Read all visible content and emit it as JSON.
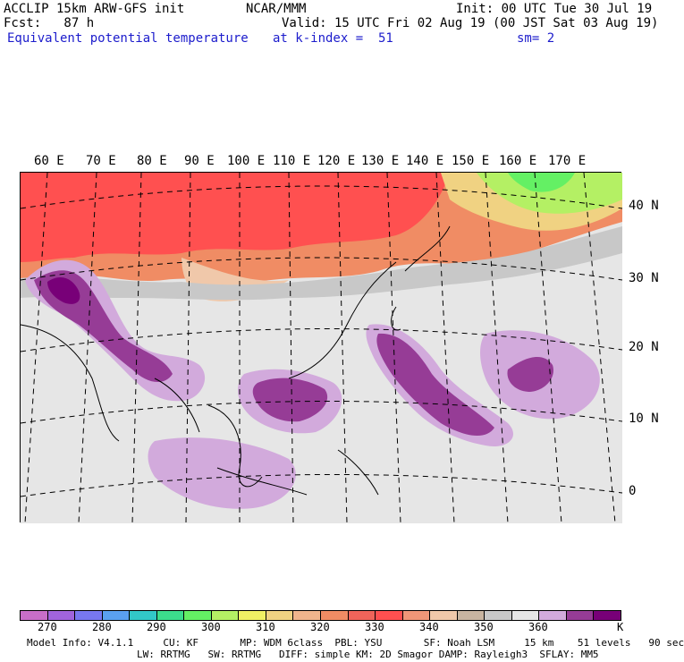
{
  "header": {
    "model": "ACCLIP 15km ARW-GFS init",
    "org": "NCAR/MMM",
    "init": "Init: 00 UTC Tue 30 Jul 19",
    "fcst": "Fcst:   87 h",
    "valid": "Valid: 15 UTC Fri 02 Aug 19 (00 JST Sat 03 Aug 19)",
    "field": "Equivalent potential temperature",
    "level": "at k-index =  51",
    "smooth": "sm= 2"
  },
  "map": {
    "lon_labels": [
      "60 E",
      "70 E",
      "80 E",
      "90 E",
      "100 E",
      "110 E",
      "120 E",
      "130 E",
      "140 E",
      "150 E",
      "160 E",
      "170 E"
    ],
    "lat_labels": [
      "40 N",
      "30 N",
      "20 N",
      "10 N",
      "0"
    ]
  },
  "colorbar": {
    "colors": [
      "#c86ec8",
      "#a064dc",
      "#7878f0",
      "#5aa0f0",
      "#32c8c8",
      "#3cdc8c",
      "#64f064",
      "#b4f064",
      "#f0f064",
      "#f0d282",
      "#f0b48c",
      "#f08c64",
      "#f0645a",
      "#ff5050",
      "#f09678",
      "#f0c8aa",
      "#c8b4a0",
      "#c8c8c8",
      "#e6e6e6",
      "#d2aadc",
      "#963c96",
      "#780078"
    ],
    "ticks": [
      "270",
      "280",
      "290",
      "300",
      "310",
      "320",
      "330",
      "340",
      "350",
      "360",
      "K"
    ]
  },
  "footer": {
    "line1": "Model Info: V4.1.1     CU: KF       MP: WDM 6class  PBL: YSU       SF: Noah LSM     15 km    51 levels   90 sec",
    "line2": "LW: RRTMG   SW: RRTMG   DIFF: simple KM: 2D Smagor DAMP: Rayleigh3  SFLAY: MM5"
  }
}
